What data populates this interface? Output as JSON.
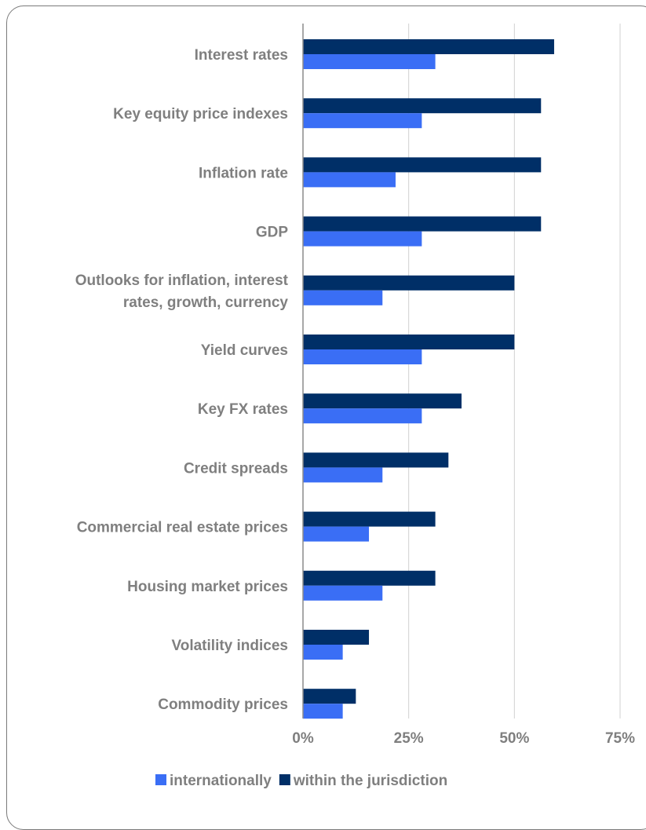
{
  "chart_data": {
    "type": "bar",
    "orientation": "horizontal",
    "categories": [
      "Interest rates",
      "Key equity price indexes",
      "Inflation rate",
      "GDP",
      "Outlooks for inflation, interest rates, growth, currency",
      "Yield curves",
      "Key FX rates",
      "Credit spreads",
      "Commercial real estate prices",
      "Housing market prices",
      "Volatility indices",
      "Commodity prices"
    ],
    "category_lines": [
      [
        "Interest rates"
      ],
      [
        "Key equity price indexes"
      ],
      [
        "Inflation rate"
      ],
      [
        "GDP"
      ],
      [
        "Outlooks for inflation, interest",
        "rates, growth, currency"
      ],
      [
        "Yield curves"
      ],
      [
        "Key FX rates"
      ],
      [
        "Credit spreads"
      ],
      [
        "Commercial real estate prices"
      ],
      [
        "Housing market prices"
      ],
      [
        "Volatility indices"
      ],
      [
        "Commodity prices"
      ]
    ],
    "series": [
      {
        "name": "within the jurisdiction",
        "color": "#002f67",
        "values": [
          59.4,
          56.3,
          56.3,
          56.3,
          50.0,
          50.0,
          37.5,
          34.4,
          31.3,
          31.3,
          15.6,
          12.5
        ]
      },
      {
        "name": "internationally",
        "color": "#3a6ef5",
        "values": [
          31.3,
          28.1,
          21.9,
          28.1,
          18.8,
          28.1,
          28.1,
          18.8,
          15.6,
          18.8,
          9.4,
          9.4
        ]
      }
    ],
    "xlim": [
      0,
      75
    ],
    "xticks": [
      0,
      25,
      50,
      75
    ],
    "xtick_labels": [
      "0%",
      "25%",
      "50%",
      "75%"
    ],
    "grid": "vertical",
    "legend_position": "bottom",
    "legend": [
      {
        "name": "internationally",
        "color": "#3a6ef5"
      },
      {
        "name": "within the jurisdiction",
        "color": "#002f67"
      }
    ]
  }
}
